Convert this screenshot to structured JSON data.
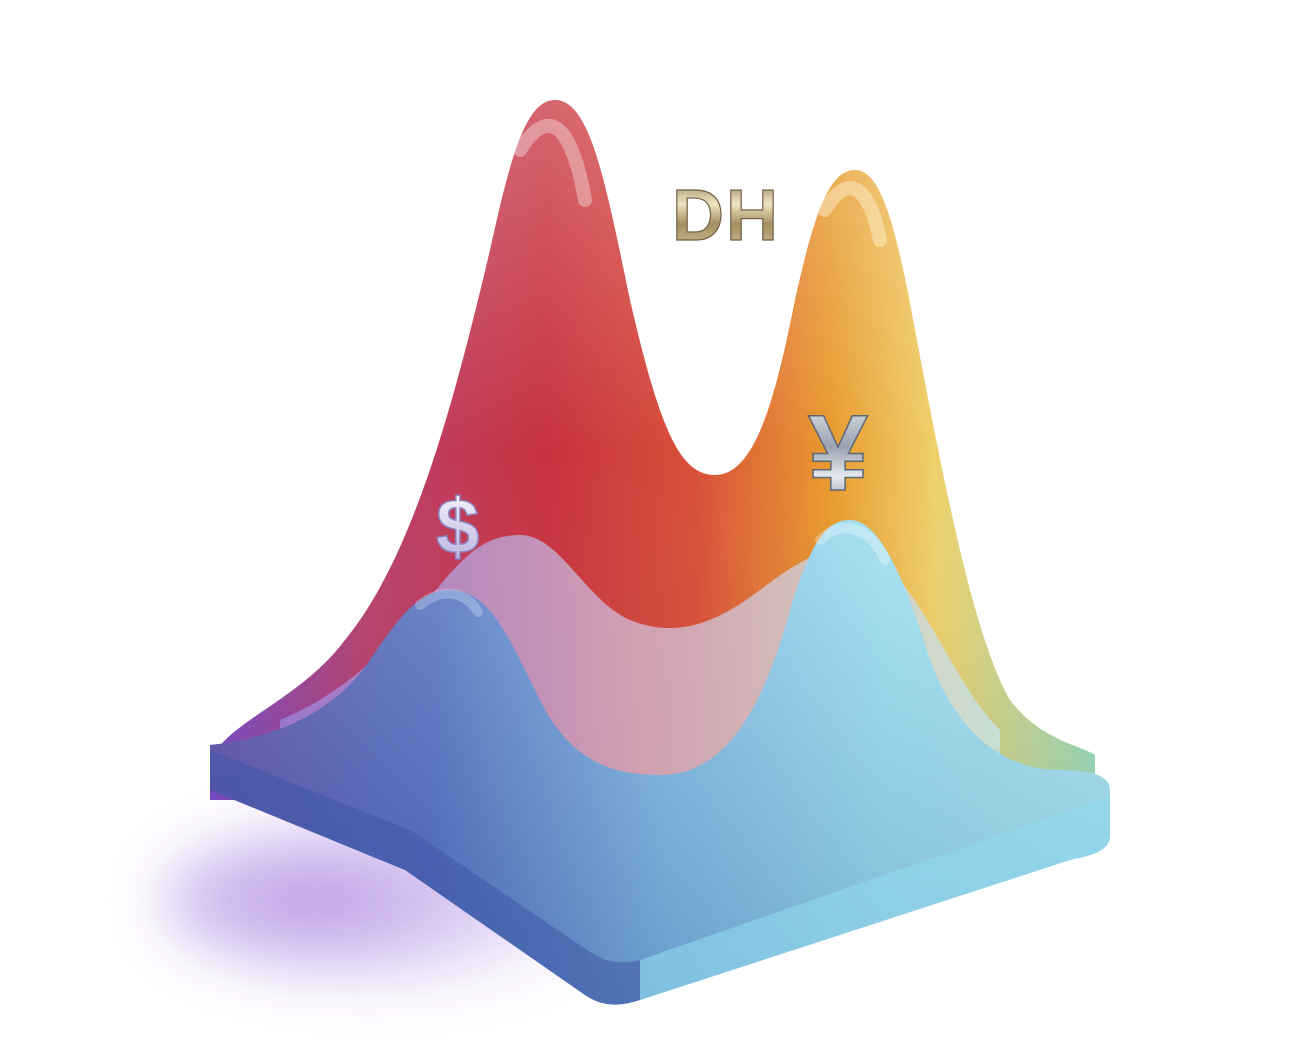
{
  "illustration": {
    "brand_text": "DH",
    "currency_symbols": [
      "$",
      "¥"
    ],
    "colors": {
      "back_wave_red": "#c8323f",
      "back_wave_orange": "#e89a2e",
      "back_wave_yellow": "#efd06a",
      "purple_edge": "#7a4bc4",
      "front_wave_blue": "#4a78c8",
      "front_wave_cyan": "#96dcef",
      "metal_gold": "#b9a77a",
      "metal_silver": "#c9ced6"
    }
  }
}
